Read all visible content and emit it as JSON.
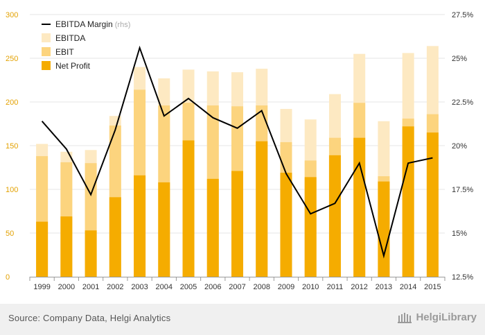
{
  "chart_data": {
    "type": "bar",
    "categories": [
      "1999",
      "2000",
      "2001",
      "2002",
      "2003",
      "2004",
      "2005",
      "2006",
      "2007",
      "2008",
      "2009",
      "2010",
      "2011",
      "2012",
      "2013",
      "2014",
      "2015"
    ],
    "series": [
      {
        "name": "EBITDA",
        "kind": "bar",
        "color": "#fde9c2",
        "values": [
          152,
          143,
          145,
          184,
          240,
          227,
          237,
          235,
          234,
          238,
          192,
          180,
          209,
          255,
          178,
          256,
          264
        ]
      },
      {
        "name": "EBIT",
        "kind": "bar",
        "color": "#fcd47e",
        "values": [
          138,
          131,
          130,
          173,
          214,
          196,
          199,
          196,
          195,
          196,
          154,
          133,
          159,
          199,
          115,
          181,
          186
        ]
      },
      {
        "name": "Net Profit",
        "kind": "bar",
        "color": "#f5ac00",
        "values": [
          63,
          69,
          53,
          91,
          116,
          108,
          156,
          112,
          121,
          155,
          119,
          114,
          139,
          159,
          109,
          172,
          165
        ]
      },
      {
        "name": "EBITDA Margin",
        "kind": "line",
        "axis": "right",
        "color": "#000000",
        "values": [
          21.4,
          19.8,
          17.2,
          20.9,
          25.6,
          21.7,
          22.7,
          21.6,
          21.0,
          22.0,
          18.4,
          16.1,
          16.7,
          19.0,
          13.7,
          19.0,
          19.3
        ]
      }
    ],
    "legend": [
      {
        "label": "EBITDA Margin",
        "suffix": "(rhs)",
        "symbol": "line",
        "color": "#000000"
      },
      {
        "label": "EBITDA",
        "suffix": "",
        "symbol": "box",
        "color": "#fde9c2"
      },
      {
        "label": "EBIT",
        "suffix": "",
        "symbol": "box",
        "color": "#fcd47e"
      },
      {
        "label": "Net Profit",
        "suffix": "",
        "symbol": "box",
        "color": "#f5ac00"
      }
    ],
    "ylim": [
      0,
      300
    ],
    "yticks": [
      "0",
      "50",
      "100",
      "150",
      "200",
      "250",
      "300"
    ],
    "y2lim": [
      12.5,
      27.5
    ],
    "y2ticks": [
      "12.5%",
      "15%",
      "17.5%",
      "20%",
      "22.5%",
      "25%",
      "27.5%"
    ],
    "legend_position": "top-left",
    "grid": true
  },
  "footer": {
    "source": "Source: Company Data, Helgi Analytics",
    "logo": "HelgiLibrary"
  }
}
